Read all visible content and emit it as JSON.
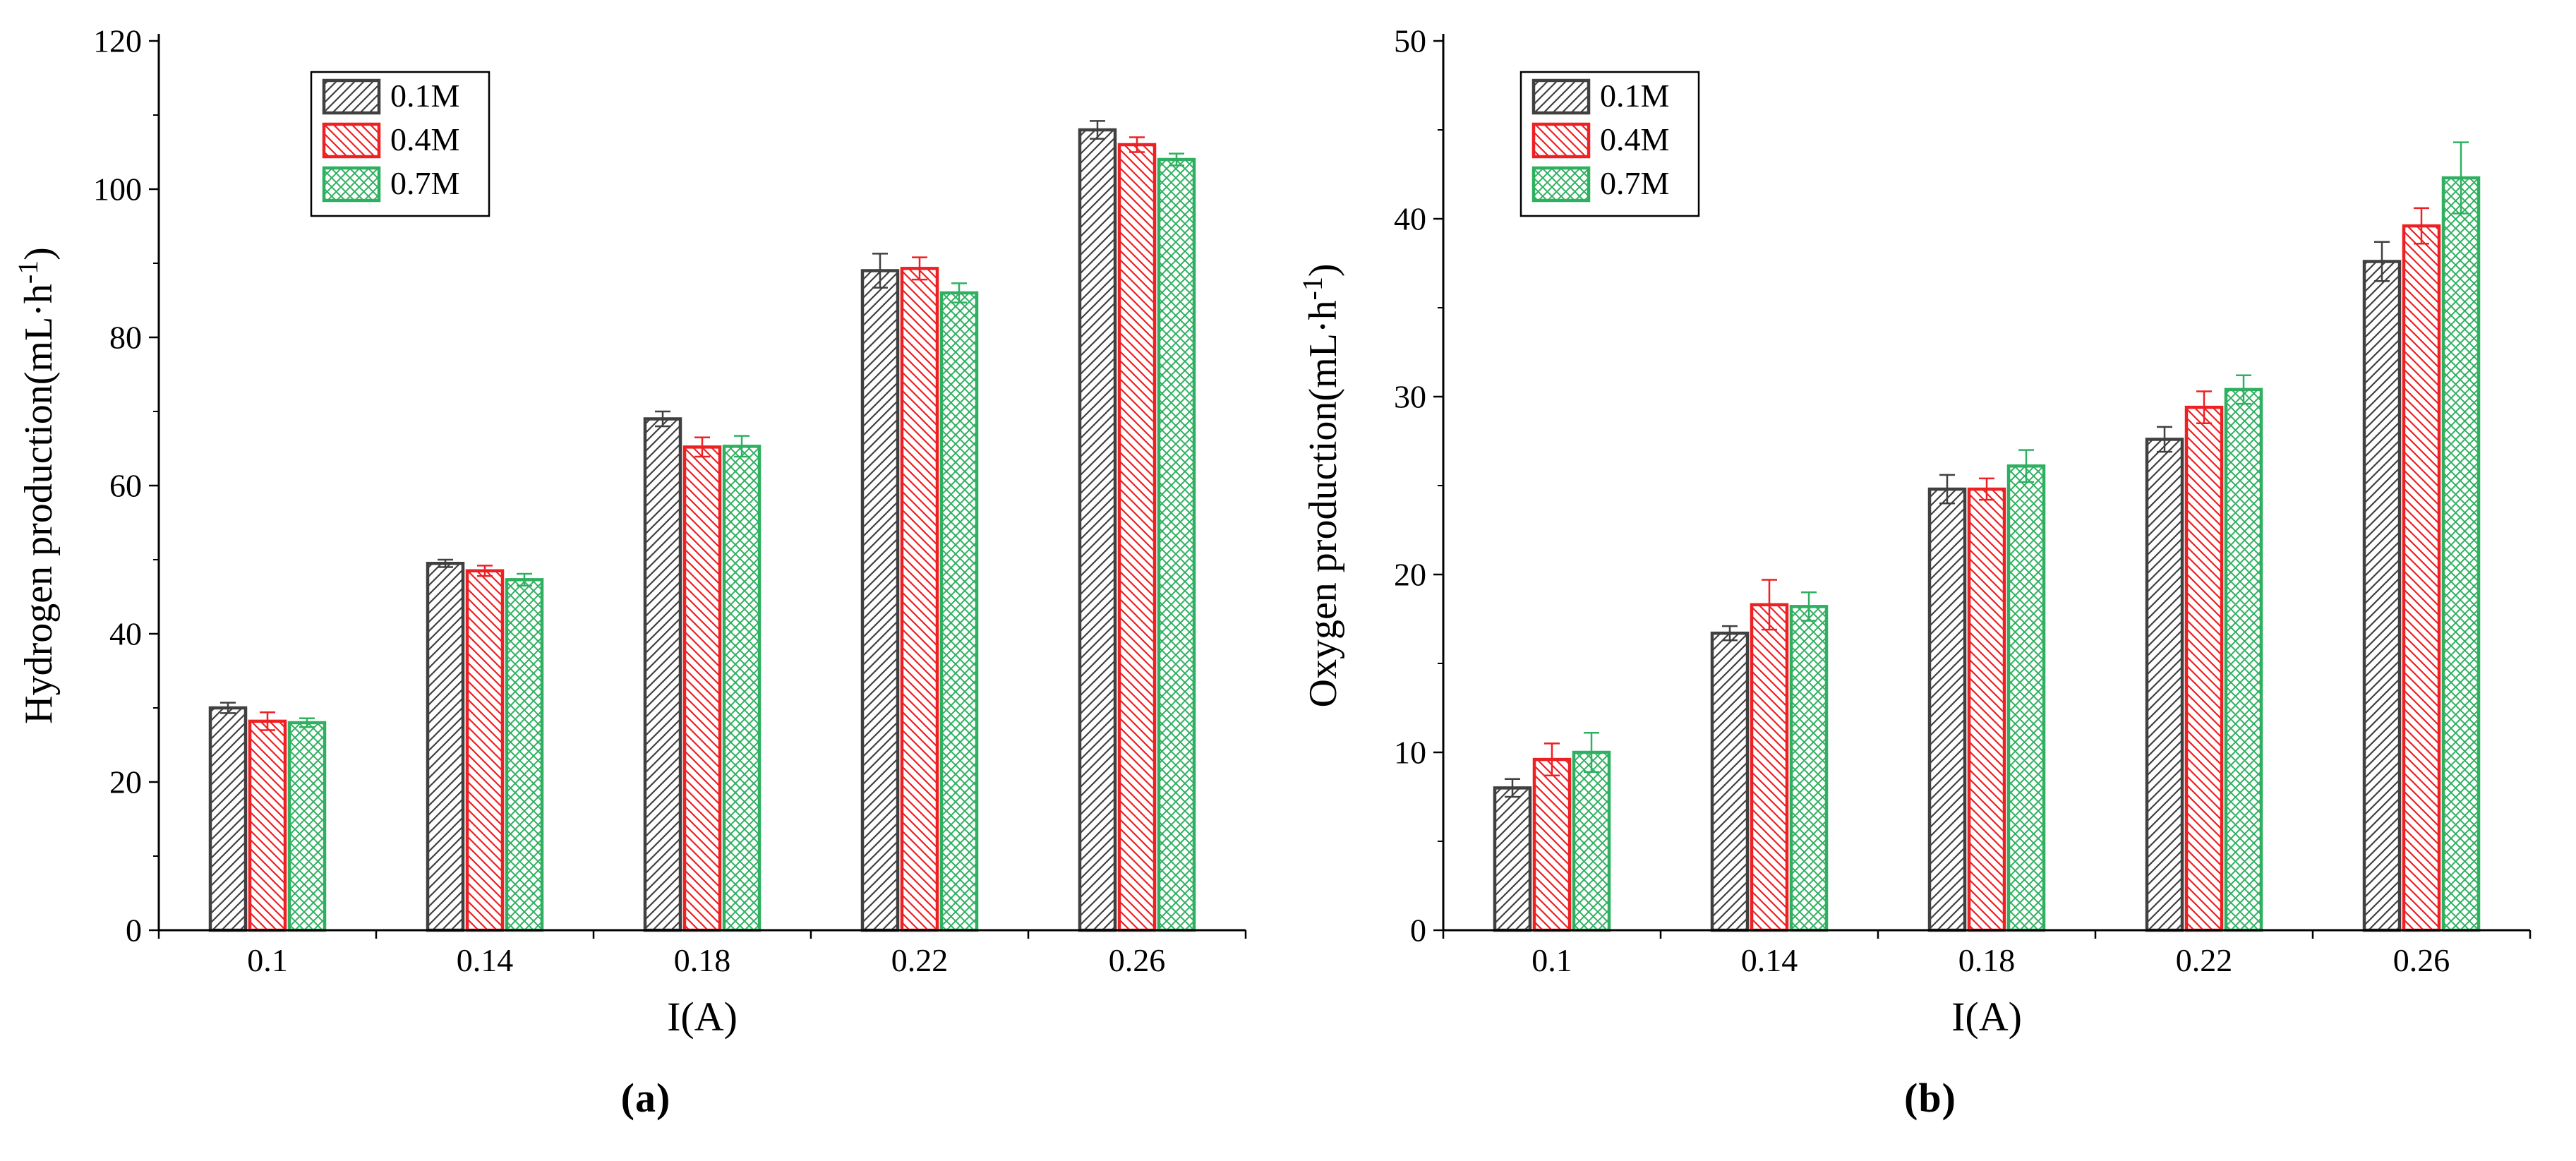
{
  "page": {
    "background": "#ffffff"
  },
  "chart_data": [
    {
      "type": "bar",
      "name": "hydrogen-production-chart",
      "caption": "(a)",
      "title": "",
      "xlabel": "I(A)",
      "ylabel": {
        "base": "Hydrogen production(mL·h",
        "sup": "-1",
        "close": ")"
      },
      "categories": [
        "0.1",
        "0.14",
        "0.18",
        "0.22",
        "0.26"
      ],
      "ylim": [
        0,
        120
      ],
      "ytick_step": 20,
      "minor_step": 10,
      "grid": false,
      "legend_position": "top-left-inside",
      "legend_offset": {
        "x": 216,
        "y": 44
      },
      "series": [
        {
          "name": "0.1M",
          "color": "#404040",
          "hatch": "fwd",
          "values": [
            30.0,
            49.5,
            69.0,
            89.0,
            108.0
          ],
          "errors": [
            0.7,
            0.5,
            1.0,
            2.3,
            1.2
          ]
        },
        {
          "name": "0.4M",
          "color": "#ed2024",
          "hatch": "bwd",
          "values": [
            28.2,
            48.5,
            65.2,
            89.3,
            106.0
          ],
          "errors": [
            1.2,
            0.7,
            1.3,
            1.5,
            1.0
          ]
        },
        {
          "name": "0.7M",
          "color": "#2fb060",
          "hatch": "cross",
          "values": [
            28.0,
            47.3,
            65.3,
            86.0,
            104.0
          ],
          "errors": [
            0.6,
            0.8,
            1.4,
            1.3,
            0.8
          ]
        }
      ]
    },
    {
      "type": "bar",
      "name": "oxygen-production-chart",
      "caption": "(b)",
      "title": "",
      "xlabel": "I(A)",
      "ylabel": {
        "base": "Oxygen production(mL·h",
        "sup": "-1",
        "close": ")"
      },
      "categories": [
        "0.1",
        "0.14",
        "0.18",
        "0.22",
        "0.26"
      ],
      "ylim": [
        0,
        50
      ],
      "ytick_step": 10,
      "minor_step": 5,
      "grid": false,
      "legend_position": "top-left-inside",
      "legend_offset": {
        "x": 110,
        "y": 44
      },
      "series": [
        {
          "name": "0.1M",
          "color": "#404040",
          "hatch": "fwd",
          "values": [
            8.0,
            16.7,
            24.8,
            27.6,
            37.6
          ],
          "errors": [
            0.5,
            0.4,
            0.8,
            0.7,
            1.1
          ]
        },
        {
          "name": "0.4M",
          "color": "#ed2024",
          "hatch": "bwd",
          "values": [
            9.6,
            18.3,
            24.8,
            29.4,
            39.6
          ],
          "errors": [
            0.9,
            1.4,
            0.6,
            0.9,
            1.0
          ]
        },
        {
          "name": "0.7M",
          "color": "#2fb060",
          "hatch": "cross",
          "values": [
            10.0,
            18.2,
            26.1,
            30.4,
            42.3
          ],
          "errors": [
            1.1,
            0.8,
            0.9,
            0.8,
            2.0
          ]
        }
      ]
    }
  ]
}
